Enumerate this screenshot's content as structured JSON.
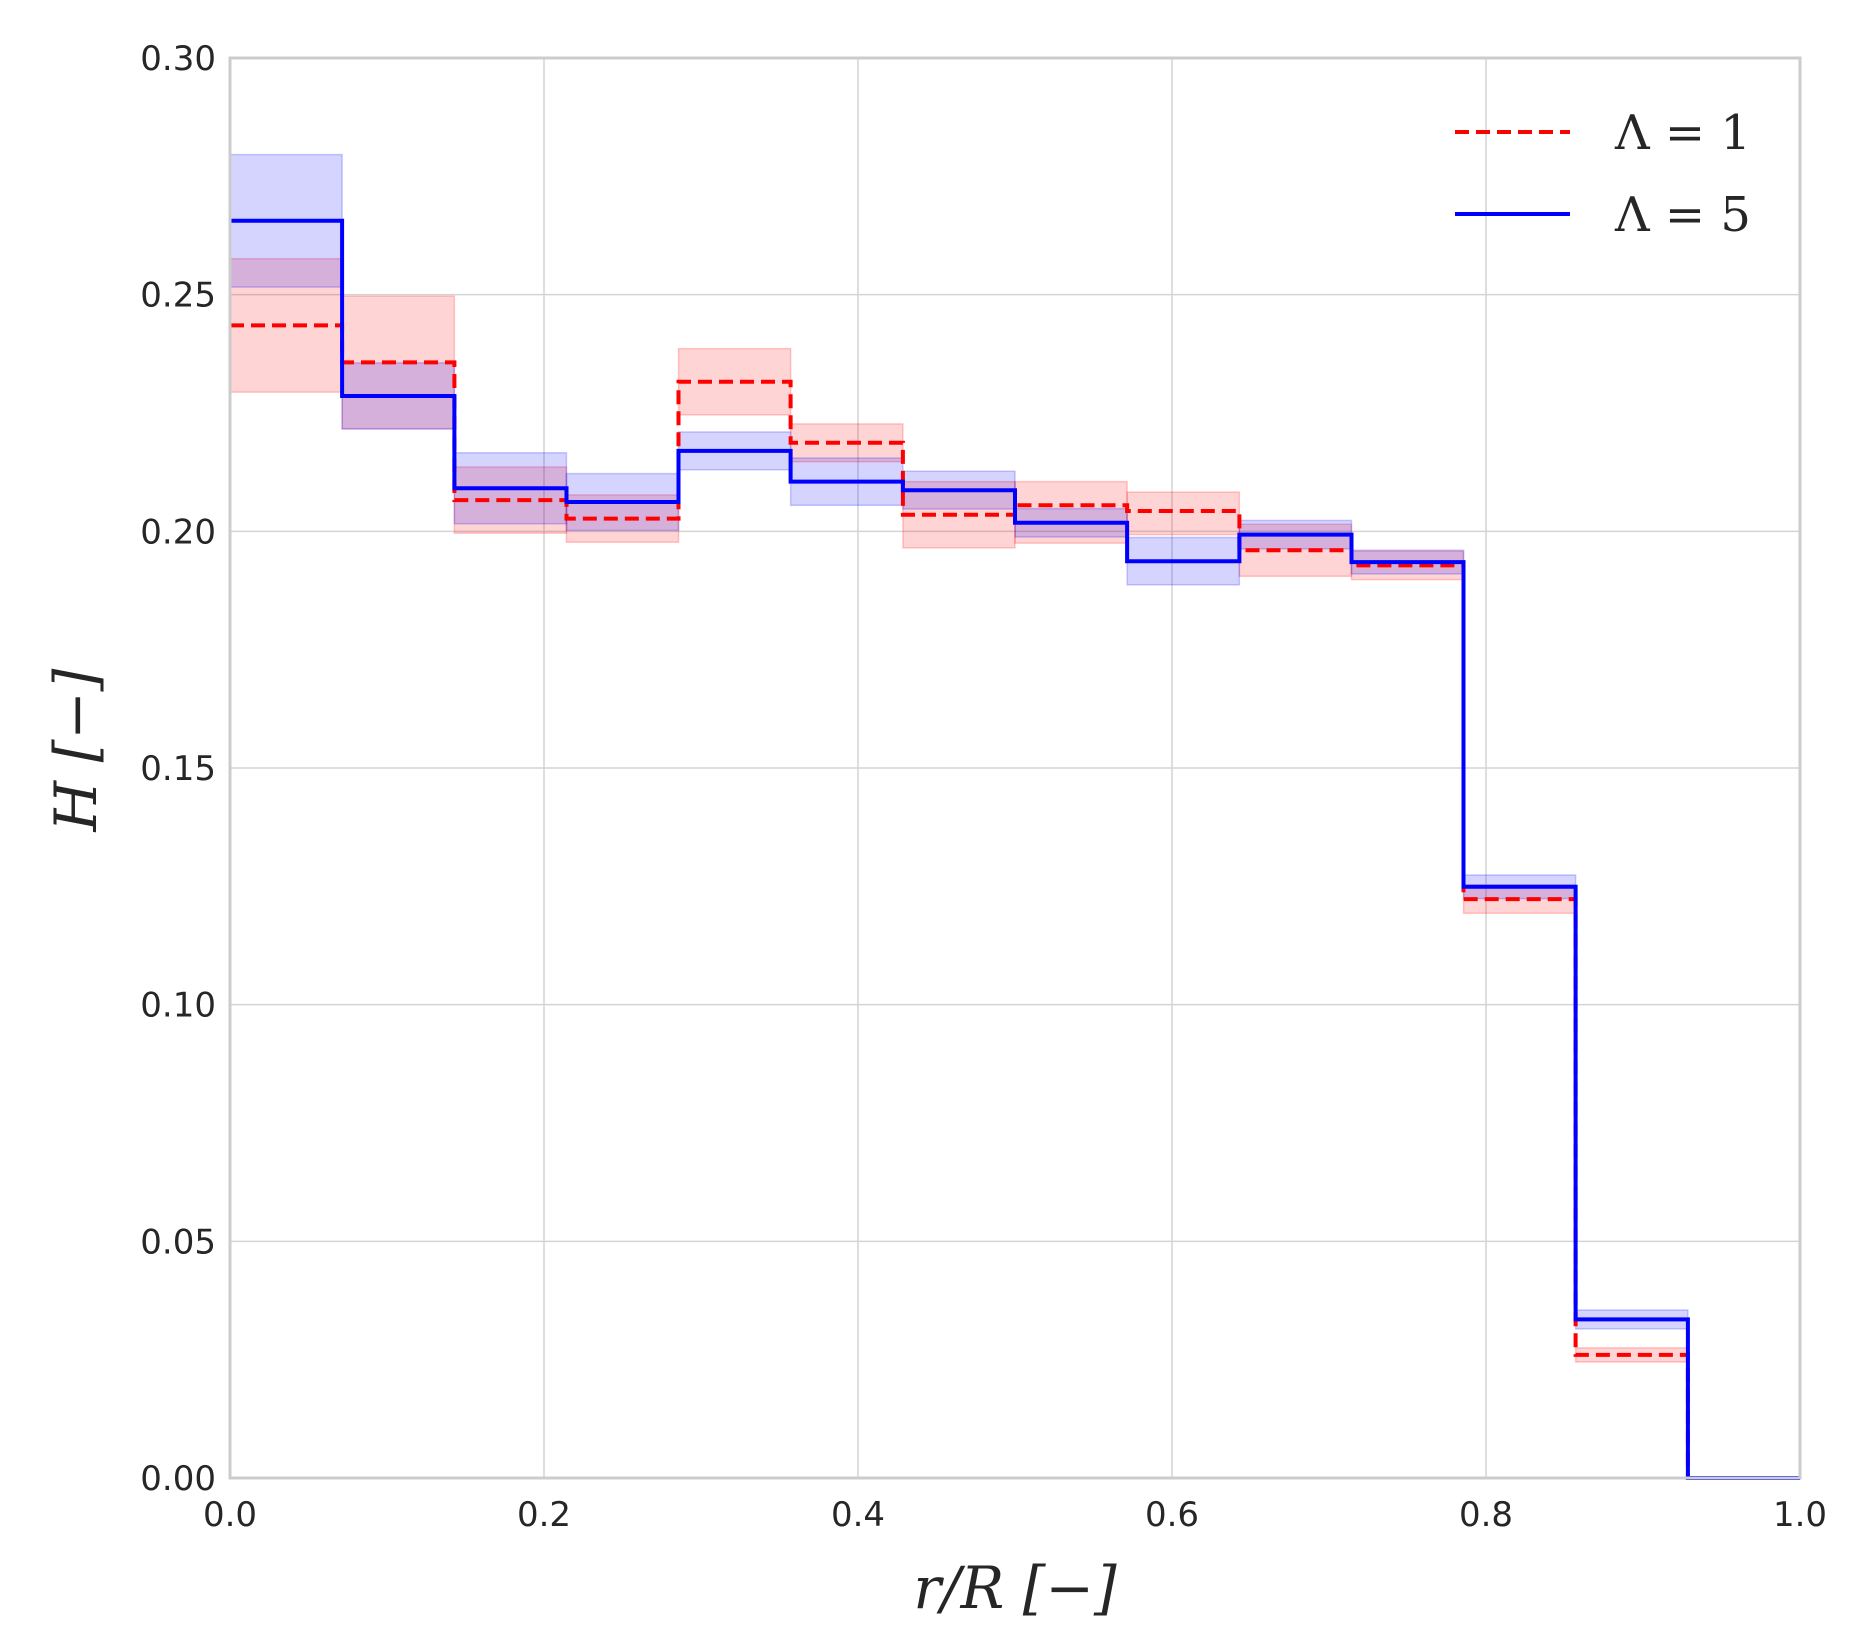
{
  "chart_data": {
    "type": "step",
    "title": "",
    "xlabel": "r/R [−]",
    "ylabel": "H [−]",
    "xlim": [
      0.0,
      1.0
    ],
    "ylim": [
      0.0,
      0.3
    ],
    "xticks": [
      0.0,
      0.2,
      0.4,
      0.6,
      0.8,
      1.0
    ],
    "xtick_labels": [
      "0.0",
      "0.2",
      "0.4",
      "0.6",
      "0.8",
      "1.0"
    ],
    "yticks": [
      0.0,
      0.05,
      0.1,
      0.15,
      0.2,
      0.25,
      0.3
    ],
    "ytick_labels": [
      "0.00",
      "0.05",
      "0.10",
      "0.15",
      "0.20",
      "0.25",
      "0.30"
    ],
    "grid": true,
    "legend_position": "top-right",
    "bin_edges": [
      0.0,
      0.0714,
      0.1429,
      0.2143,
      0.2857,
      0.3571,
      0.4286,
      0.5,
      0.5714,
      0.6429,
      0.7143,
      0.7857,
      0.8571,
      0.9286,
      1.0
    ],
    "series": [
      {
        "name": "Λ = 1",
        "color": "#ff0000",
        "line_style": "dashed",
        "values": [
          0.2435,
          0.2357,
          0.2066,
          0.2027,
          0.2316,
          0.2187,
          0.2035,
          0.2055,
          0.2043,
          0.196,
          0.1928,
          0.1223,
          0.026,
          0.0
        ],
        "lower": [
          0.2294,
          0.2217,
          0.1996,
          0.1977,
          0.2246,
          0.2147,
          0.1965,
          0.1975,
          0.1993,
          0.1905,
          0.1898,
          0.1193,
          0.0245,
          0.0
        ],
        "upper": [
          0.2576,
          0.2497,
          0.2136,
          0.2077,
          0.2386,
          0.2227,
          0.2105,
          0.2105,
          0.2083,
          0.2015,
          0.1958,
          0.1253,
          0.0275,
          0.0
        ]
      },
      {
        "name": "Λ = 5",
        "color": "#0000ff",
        "line_style": "solid",
        "values": [
          0.2656,
          0.2286,
          0.2091,
          0.2062,
          0.217,
          0.2105,
          0.2087,
          0.2018,
          0.1937,
          0.1993,
          0.1935,
          0.1249,
          0.0335,
          0.0
        ],
        "lower": [
          0.2516,
          0.2216,
          0.2016,
          0.2002,
          0.213,
          0.2055,
          0.2047,
          0.1988,
          0.1887,
          0.1963,
          0.191,
          0.1224,
          0.0315,
          0.0
        ],
        "upper": [
          0.2796,
          0.2356,
          0.2166,
          0.2122,
          0.221,
          0.2155,
          0.2127,
          0.2048,
          0.1987,
          0.2023,
          0.196,
          0.1274,
          0.0355,
          0.0
        ]
      }
    ]
  }
}
